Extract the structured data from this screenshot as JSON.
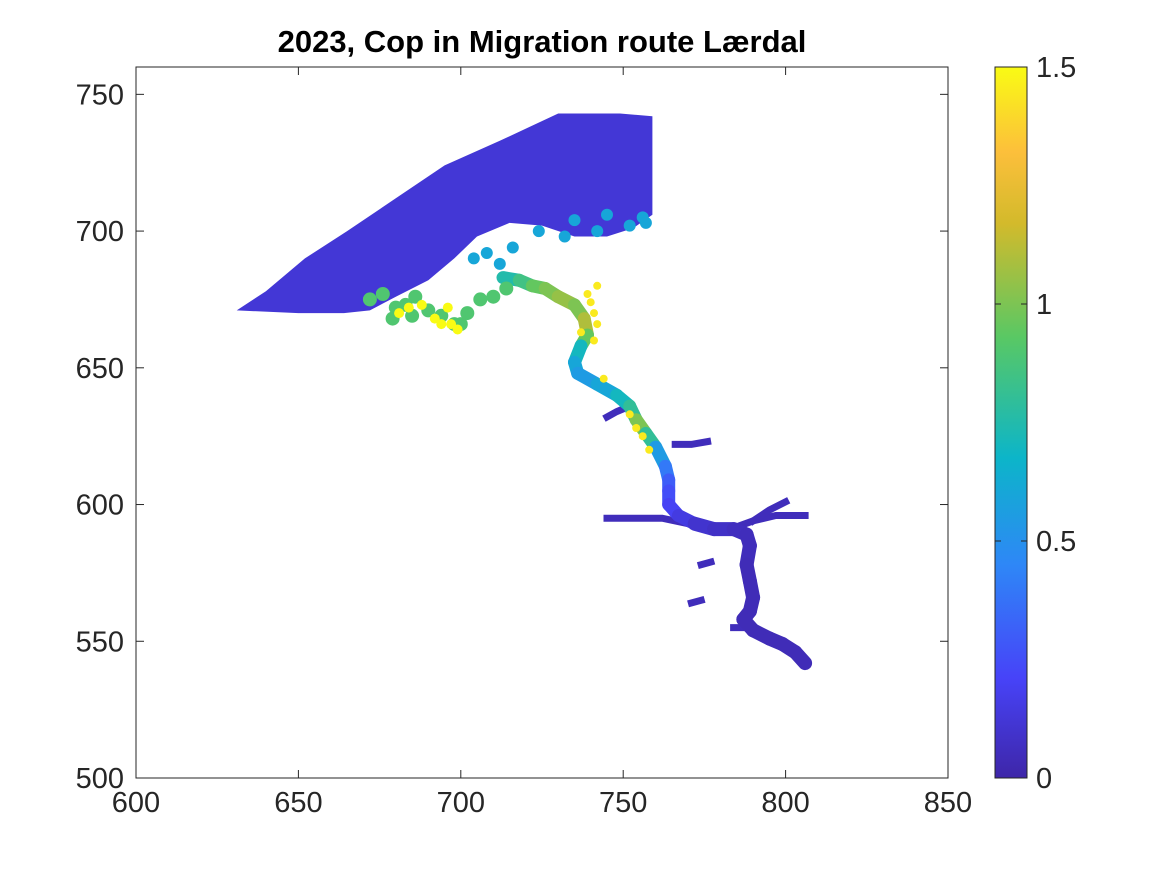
{
  "chart_data": {
    "type": "heatmap",
    "title": "2023, Cop in Migration route Lærdal",
    "xlabel": "",
    "ylabel": "",
    "xlim": [
      600,
      850
    ],
    "ylim": [
      500,
      760
    ],
    "xticks": [
      600,
      650,
      700,
      750,
      800,
      850
    ],
    "yticks": [
      500,
      550,
      600,
      650,
      700,
      750
    ],
    "xtick_labels": [
      "600",
      "650",
      "700",
      "750",
      "800",
      "850"
    ],
    "ytick_labels": [
      "500",
      "550",
      "600",
      "650",
      "700",
      "750"
    ],
    "colorbar": {
      "colormap": "parula",
      "clim": [
        0,
        1.5
      ],
      "ticks": [
        0,
        0.5,
        1,
        1.5
      ],
      "tick_labels": [
        "0",
        "0.5",
        "1",
        "1.5"
      ],
      "colors": [
        "#3e26a8",
        "#4743f8",
        "#2e87f7",
        "#0cb5c9",
        "#59c864",
        "#d3ba2b",
        "#fcbf3b",
        "#f9fb14"
      ]
    },
    "grid": false,
    "region_fill": {
      "outer_fjord": {
        "outline": [
          [
            631,
            671
          ],
          [
            640,
            678
          ],
          [
            652,
            690
          ],
          [
            665,
            700
          ],
          [
            680,
            712
          ],
          [
            695,
            724
          ],
          [
            712,
            733
          ],
          [
            730,
            743
          ],
          [
            749,
            743
          ],
          [
            759,
            742
          ],
          [
            759,
            706
          ],
          [
            753,
            701
          ],
          [
            745,
            698
          ],
          [
            735,
            698
          ],
          [
            725,
            702
          ],
          [
            715,
            703
          ],
          [
            705,
            698
          ],
          [
            698,
            690
          ],
          [
            690,
            682
          ],
          [
            680,
            676
          ],
          [
            672,
            671
          ],
          [
            664,
            670
          ],
          [
            650,
            670
          ]
        ],
        "value": 0.12
      },
      "outer_fjord_shallows": {
        "points": [
          [
            708,
            692
          ],
          [
            716,
            694
          ],
          [
            724,
            700
          ],
          [
            732,
            698
          ],
          [
            742,
            700
          ],
          [
            752,
            702
          ],
          [
            756,
            705
          ],
          [
            757,
            703
          ],
          [
            704,
            690
          ],
          [
            712,
            688
          ],
          [
            745,
            706
          ],
          [
            735,
            704
          ]
        ],
        "value": 0.6
      },
      "southern_shore": {
        "points": [
          [
            672,
            675
          ],
          [
            676,
            677
          ],
          [
            680,
            672
          ],
          [
            683,
            673
          ],
          [
            686,
            676
          ],
          [
            690,
            671
          ],
          [
            694,
            669
          ],
          [
            698,
            666
          ],
          [
            702,
            670
          ],
          [
            706,
            675
          ],
          [
            710,
            676
          ],
          [
            714,
            679
          ],
          [
            685,
            669
          ],
          [
            679,
            668
          ],
          [
            700,
            666
          ]
        ],
        "value": 0.9
      },
      "southern_shore_yellow": {
        "points": [
          [
            681,
            670
          ],
          [
            688,
            673
          ],
          [
            692,
            668
          ],
          [
            696,
            672
          ],
          [
            697,
            666
          ],
          [
            699,
            664
          ],
          [
            684,
            672
          ],
          [
            694,
            666
          ]
        ],
        "value": 1.5
      },
      "channel": {
        "centerline": [
          [
            713,
            683
          ],
          [
            718,
            682
          ],
          [
            722,
            680
          ],
          [
            726,
            679
          ],
          [
            730,
            676
          ],
          [
            735,
            673
          ],
          [
            738,
            668
          ],
          [
            739,
            662
          ],
          [
            737,
            658
          ],
          [
            735,
            652
          ],
          [
            736,
            648
          ],
          [
            742,
            644
          ],
          [
            748,
            640
          ],
          [
            752,
            636
          ],
          [
            754,
            631
          ],
          [
            757,
            626
          ],
          [
            760,
            621
          ],
          [
            763,
            614
          ],
          [
            764,
            609
          ],
          [
            764,
            605
          ],
          [
            764,
            600
          ],
          [
            767,
            596
          ],
          [
            772,
            593
          ],
          [
            778,
            591
          ],
          [
            784,
            591
          ],
          [
            788,
            589
          ],
          [
            789,
            585
          ],
          [
            788,
            578
          ],
          [
            789,
            572
          ],
          [
            790,
            566
          ],
          [
            789,
            561
          ],
          [
            787,
            558
          ],
          [
            790,
            554
          ],
          [
            795,
            551
          ],
          [
            799,
            549
          ],
          [
            803,
            546
          ],
          [
            806,
            542
          ]
        ],
        "values": [
          0.75,
          0.85,
          0.95,
          1.0,
          1.05,
          1.0,
          1.1,
          0.95,
          0.7,
          0.6,
          0.55,
          0.6,
          0.7,
          0.8,
          1.0,
          0.8,
          0.55,
          0.4,
          0.3,
          0.25,
          0.2,
          0.15,
          0.1,
          0.08,
          0.06,
          0.05,
          0.05,
          0.04,
          0.04,
          0.04,
          0.04,
          0.04,
          0.04,
          0.04,
          0.04,
          0.04,
          0.04
        ]
      },
      "channel_yellow_edges": {
        "points": [
          [
            740,
            674
          ],
          [
            741,
            670
          ],
          [
            742,
            666
          ],
          [
            741,
            660
          ],
          [
            737,
            663
          ],
          [
            744,
            646
          ],
          [
            752,
            633
          ],
          [
            754,
            628
          ],
          [
            756,
            625
          ],
          [
            758,
            620
          ],
          [
            742,
            680
          ],
          [
            739,
            677
          ]
        ],
        "value": 1.45
      },
      "branches": {
        "segments": [
          [
            [
              766,
              622
            ],
            [
              771,
              622
            ],
            [
              776,
              623
            ]
          ],
          [
            [
              752,
              636
            ],
            [
              748,
              634
            ],
            [
              745,
              632
            ]
          ],
          [
            [
              770,
              593
            ],
            [
              762,
              595
            ],
            [
              754,
              595
            ],
            [
              745,
              595
            ]
          ],
          [
            [
              783,
              591
            ],
            [
              790,
              594
            ],
            [
              797,
              596
            ],
            [
              806,
              596
            ]
          ],
          [
            [
              790,
              594
            ],
            [
              795,
              598
            ],
            [
              800,
              601
            ]
          ],
          [
            [
              777,
              579
            ],
            [
              774,
              578
            ]
          ],
          [
            [
              774,
              565
            ],
            [
              771,
              564
            ]
          ],
          [
            [
              790,
              555
            ],
            [
              784,
              555
            ]
          ]
        ],
        "value": 0.05
      }
    }
  }
}
